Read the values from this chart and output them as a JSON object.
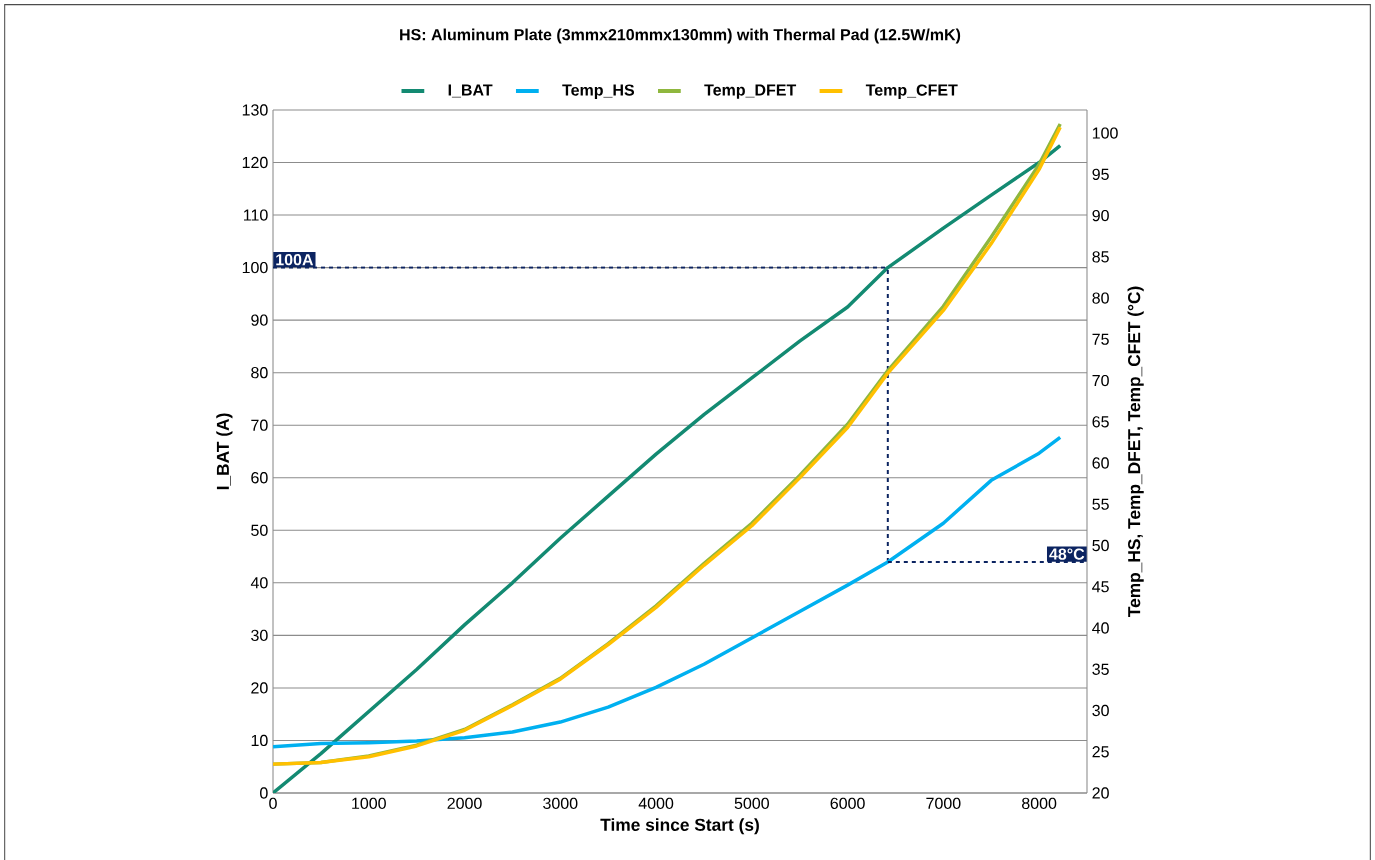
{
  "chart_data": {
    "type": "line",
    "title": "HS: Aluminum Plate (3mmx210mmx130mm) with Thermal Pad (12.5W/mK)",
    "xlabel": "Time since Start (s)",
    "ylabel": "I_BAT (A)",
    "y2label": "Temp_HS, Temp_DFET, Temp_CFET (°C)",
    "x": [
      0,
      500,
      1000,
      1500,
      2000,
      2500,
      3000,
      3500,
      4000,
      4500,
      5000,
      5500,
      6000,
      6420,
      7000,
      7500,
      8000,
      8220
    ],
    "series": [
      {
        "name": "I_BAT",
        "color": "#138a72",
        "values": [
          0,
          7.5,
          15.5,
          23.5,
          32,
          40,
          48.5,
          56.5,
          64.5,
          72,
          79,
          86,
          92.5,
          100,
          107.5,
          113.8,
          120,
          123.2
        ]
      },
      {
        "name": "Temp_HS",
        "color": "#00b0f0",
        "axis": "y2",
        "values": [
          25.6,
          26.0,
          26.1,
          26.3,
          26.7,
          27.4,
          28.6,
          30.4,
          32.8,
          35.6,
          38.8,
          42,
          45.2,
          48,
          52.7,
          57.9,
          61.2,
          63.1
        ]
      },
      {
        "name": "Temp_DFET",
        "color": "#8fb73e",
        "axis": "y2",
        "values": [
          23.5,
          23.7,
          24.5,
          25.8,
          27.7,
          30.7,
          33.9,
          38.1,
          42.7,
          47.8,
          52.7,
          58.5,
          64.7,
          71.2,
          79,
          87.4,
          96.2,
          101.1
        ]
      },
      {
        "name": "Temp_CFET",
        "color": "#ffc000",
        "axis": "y2",
        "values": [
          23.5,
          23.7,
          24.4,
          25.7,
          27.6,
          30.6,
          33.8,
          38.0,
          42.5,
          47.6,
          52.4,
          58.2,
          64.3,
          70.9,
          78.5,
          86.6,
          95.6,
          100.7
        ]
      }
    ],
    "xlim": [
      0,
      8500
    ],
    "xticks": [
      0,
      1000,
      2000,
      3000,
      4000,
      5000,
      6000,
      7000,
      8000
    ],
    "ylim": [
      0,
      130
    ],
    "yticks": [
      0,
      10,
      20,
      30,
      40,
      50,
      60,
      70,
      80,
      90,
      100,
      110,
      120,
      130
    ],
    "y2lim": [
      20,
      102.8
    ],
    "y2ticks": [
      20,
      25,
      30,
      35,
      40,
      45,
      50,
      55,
      60,
      65,
      70,
      75,
      80,
      85,
      90,
      95,
      100
    ],
    "ref_lines": [
      {
        "axis": "y",
        "value": 100,
        "label": "100A",
        "color": "#0c2461",
        "line_style": "dashed"
      },
      {
        "axis": "x",
        "value": 6420,
        "color": "#0c2461",
        "line_style": "dashed"
      },
      {
        "axis": "y2",
        "value": 48,
        "label": "48°C",
        "color": "#0c2461",
        "line_style": "dashed"
      }
    ],
    "grid": "y",
    "legend": "top",
    "marker": "none",
    "line_style": "solid"
  }
}
